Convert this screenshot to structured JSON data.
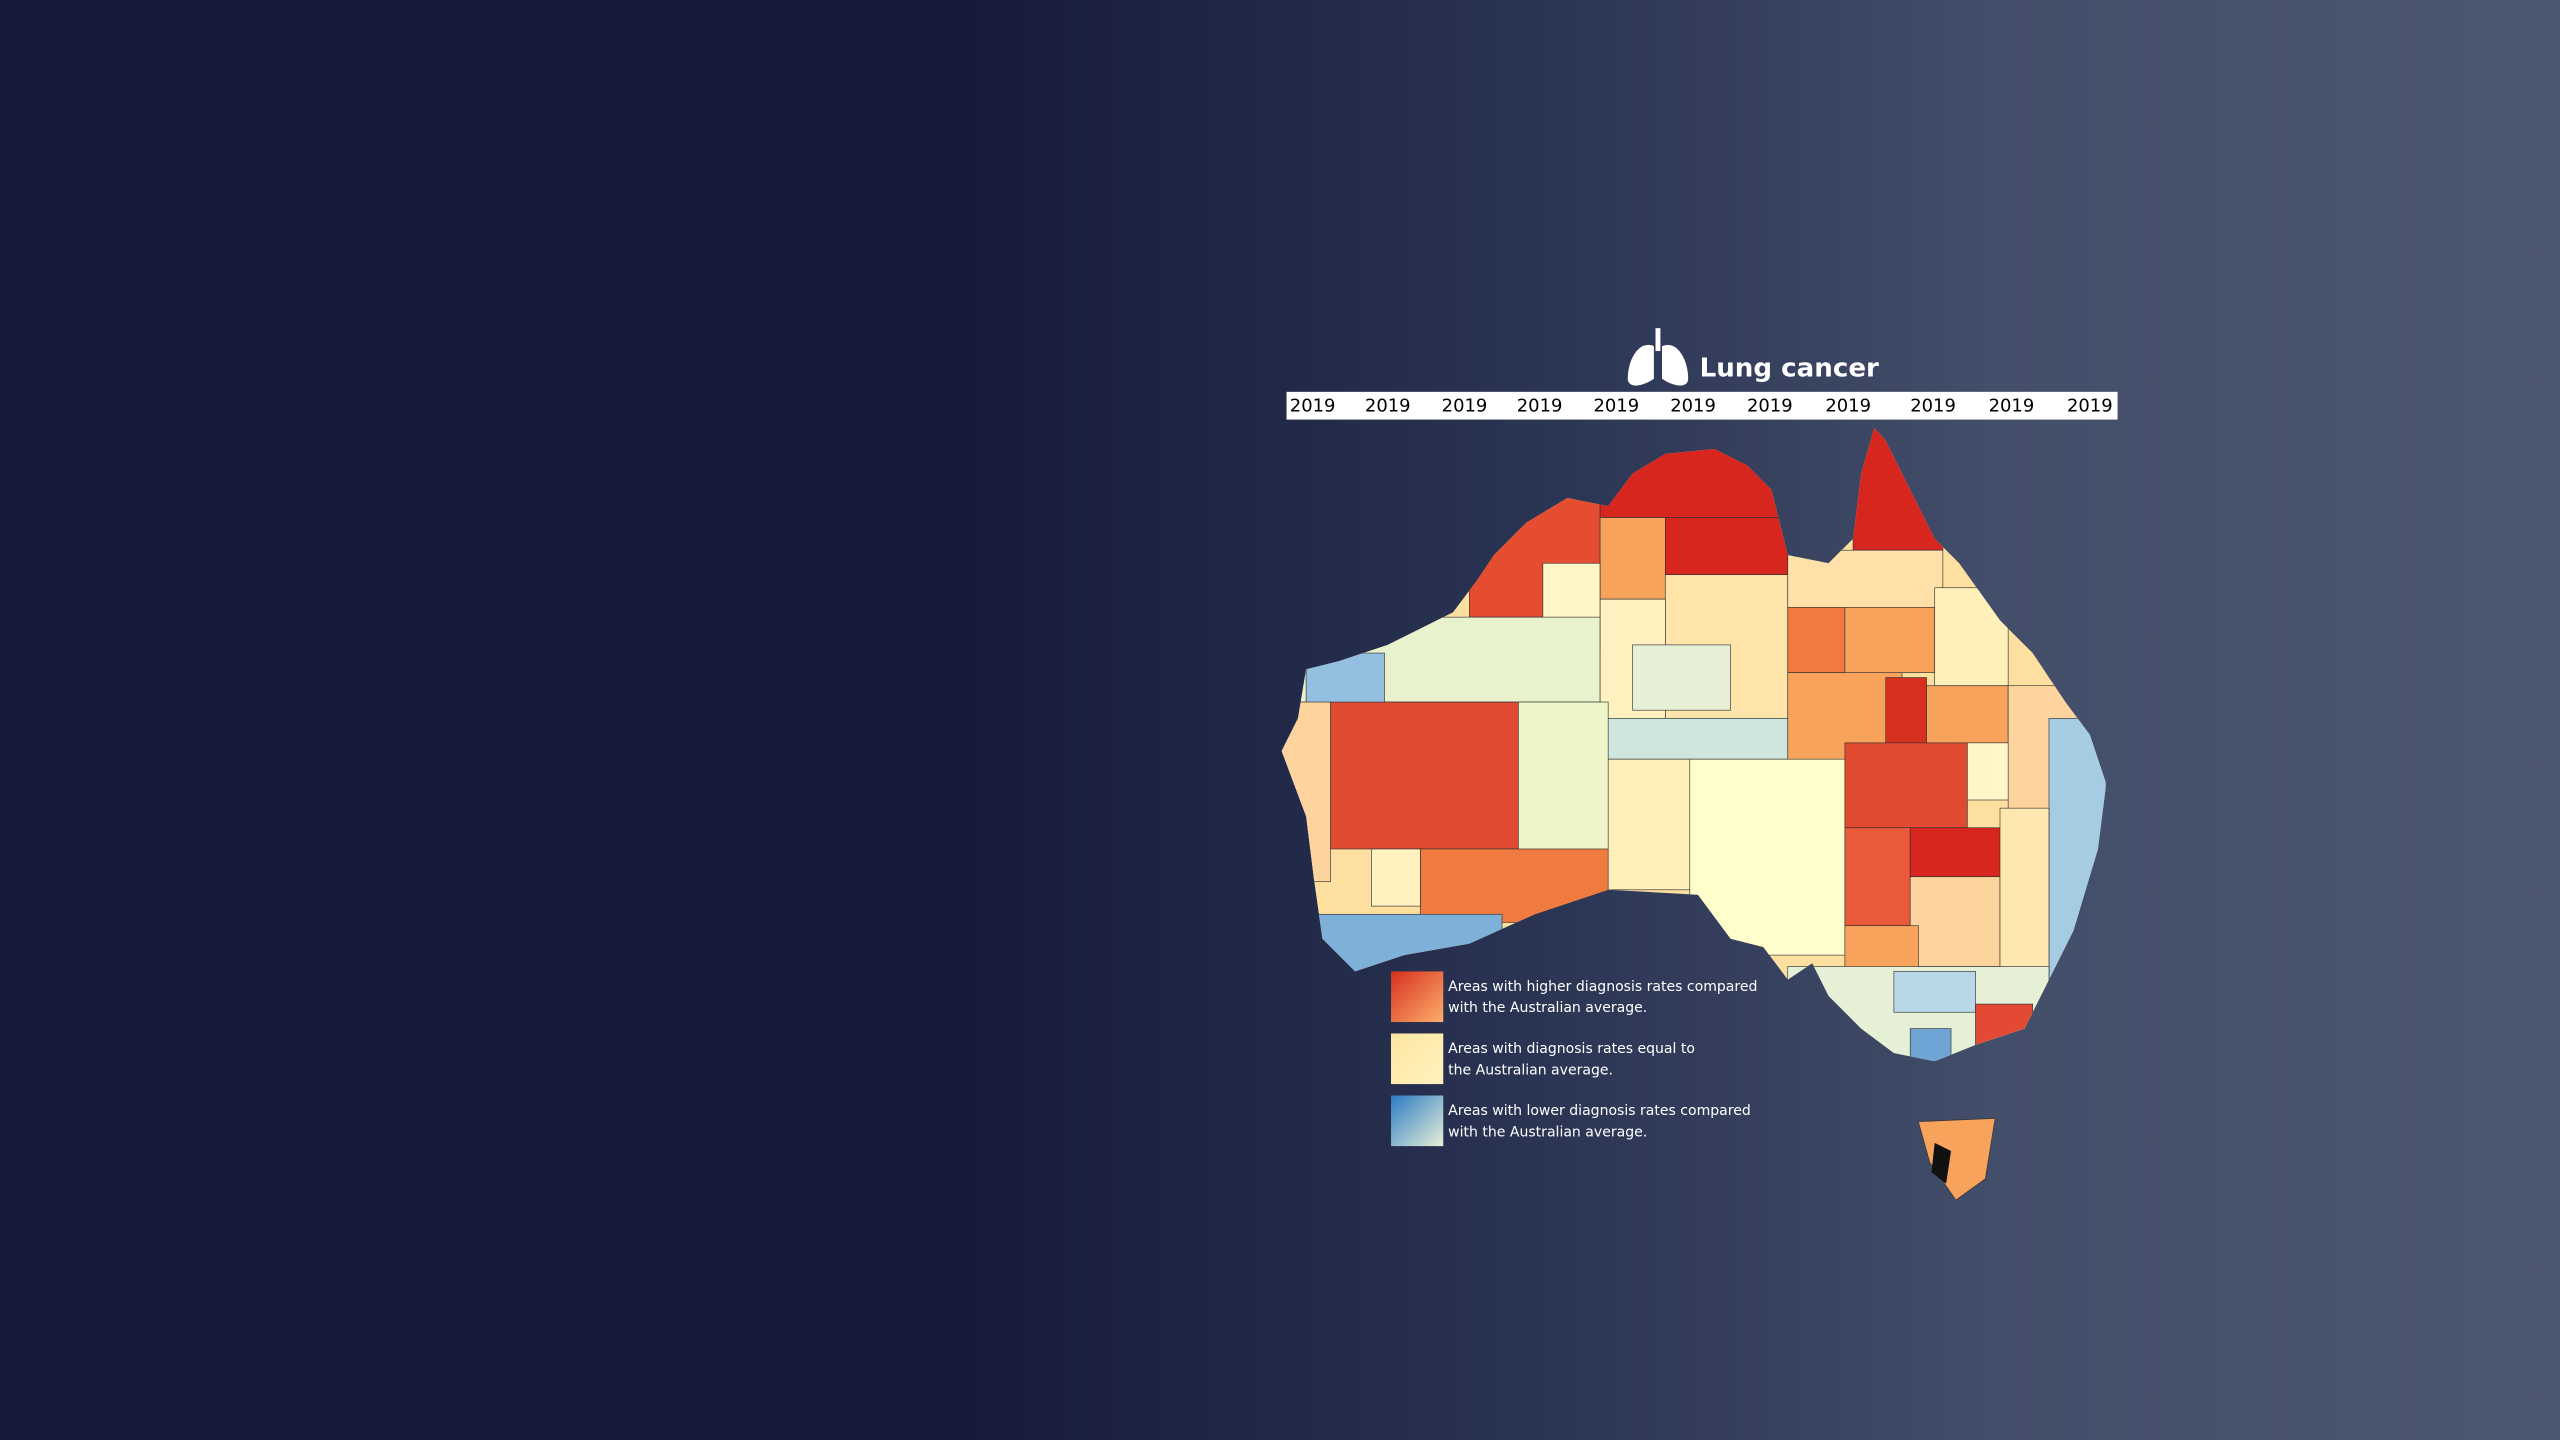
{
  "header": {
    "title": "Lung cancer"
  },
  "years": [
    "2019",
    "2019",
    "2019",
    "2019",
    "2019",
    "2019",
    "2019",
    "2019",
    "2019",
    "2019",
    "2019"
  ],
  "legend": [
    {
      "lines": [
        "Areas with higher diagnosis rates compared",
        "with the Australian average."
      ]
    },
    {
      "lines": [
        "Areas with diagnosis rates equal to",
        "the Australian average."
      ]
    },
    {
      "lines": [
        "Areas with lower diagnosis rates compared",
        "with the Australian average."
      ]
    }
  ]
}
